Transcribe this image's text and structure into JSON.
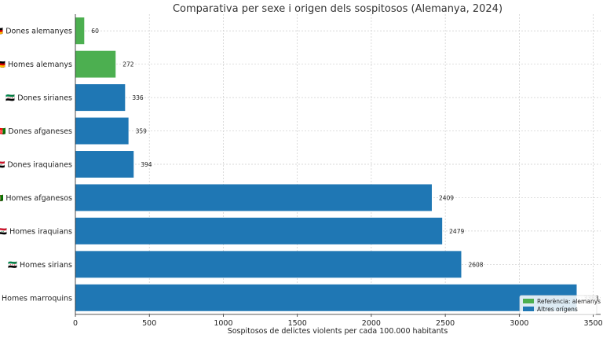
{
  "chart_data": {
    "type": "bar",
    "orientation": "horizontal",
    "title": "Comparativa per sexe i origen dels sospitosos (Alemanya, 2024)",
    "xlabel": "Sospitosos de delictes violents per cada 100.000 habitants",
    "ylabel": "",
    "xlim": [
      0,
      3550
    ],
    "x_ticks": [
      0,
      500,
      1000,
      1500,
      2000,
      2500,
      3000,
      3500
    ],
    "grid": true,
    "legend_position": "bottom-right",
    "categories": [
      "🇩🇪 Dones alemanyes",
      "🇩🇪 Homes alemanys",
      "🇸🇾 Dones sirianes",
      "🇦🇫 Dones afganeses",
      "🇮🇶 Dones iraquianes",
      "🇦🇫 Homes afganesos",
      "🇮🇶 Homes iraquians",
      "🇸🇾 Homes sirians",
      "🇲🇦 Homes marroquins"
    ],
    "values": [
      60,
      272,
      336,
      359,
      394,
      2409,
      2479,
      2608,
      3388
    ],
    "groups": [
      "reference",
      "reference",
      "other",
      "other",
      "other",
      "other",
      "other",
      "other",
      "other"
    ],
    "legend": [
      {
        "key": "reference",
        "label": "Referència: alemanys",
        "color": "#4caf50"
      },
      {
        "key": "other",
        "label": "Altres orígens",
        "color": "#1f77b4"
      }
    ]
  }
}
